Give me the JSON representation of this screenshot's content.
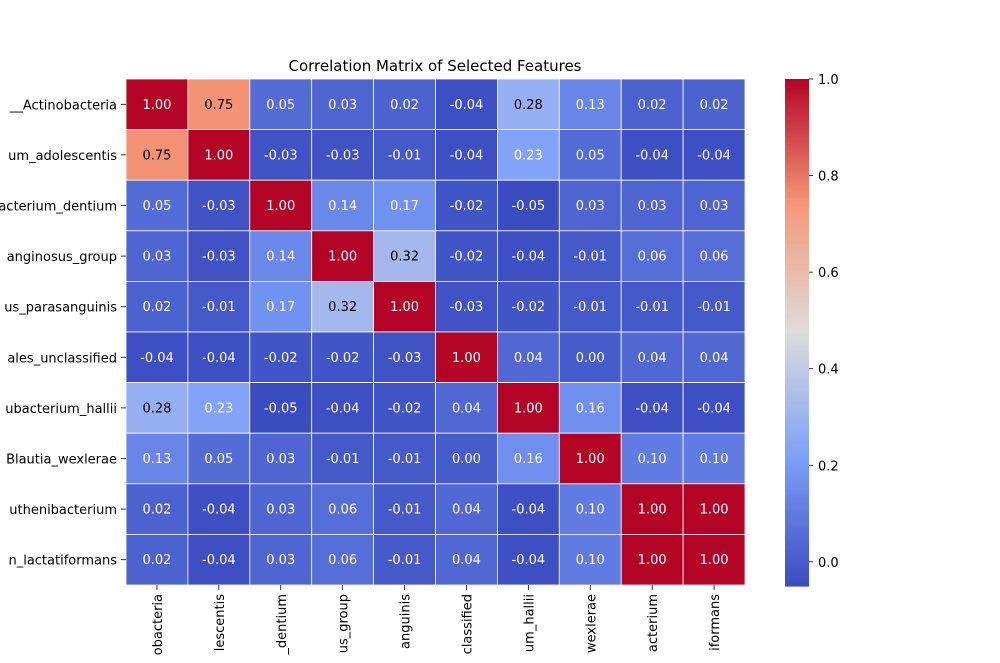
{
  "chart_data": {
    "type": "heatmap",
    "title": "Correlation Matrix of Selected Features",
    "row_labels": [
      "__Actinobacteria",
      "um_adolescentis",
      "acterium_dentium",
      "anginosus_group",
      "us_parasanguinis",
      "ales_unclassified",
      "ubacterium_hallii",
      "Blautia_wexlerae",
      "uthenibacterium",
      "n_lactatiformans"
    ],
    "col_labels": [
      "obacteria",
      "lescentis",
      "_dentium",
      "us_group",
      "anguinis",
      "classified",
      "um_hallii",
      "wexlerae",
      "acterium",
      "iformans"
    ],
    "values": [
      [
        1.0,
        0.75,
        0.05,
        0.03,
        0.02,
        -0.04,
        0.28,
        0.13,
        0.02,
        0.02
      ],
      [
        0.75,
        1.0,
        -0.03,
        -0.03,
        -0.01,
        -0.04,
        0.23,
        0.05,
        -0.04,
        -0.04
      ],
      [
        0.05,
        -0.03,
        1.0,
        0.14,
        0.17,
        -0.02,
        -0.05,
        0.03,
        0.03,
        0.03
      ],
      [
        0.03,
        -0.03,
        0.14,
        1.0,
        0.32,
        -0.02,
        -0.04,
        -0.01,
        0.06,
        0.06
      ],
      [
        0.02,
        -0.01,
        0.17,
        0.32,
        1.0,
        -0.03,
        -0.02,
        -0.01,
        -0.01,
        -0.01
      ],
      [
        -0.04,
        -0.04,
        -0.02,
        -0.02,
        -0.03,
        1.0,
        0.04,
        0.0,
        0.04,
        0.04
      ],
      [
        0.28,
        0.23,
        -0.05,
        -0.04,
        -0.02,
        0.04,
        1.0,
        0.16,
        -0.04,
        -0.04
      ],
      [
        0.13,
        0.05,
        0.03,
        -0.01,
        -0.01,
        0.0,
        0.16,
        1.0,
        0.1,
        0.1
      ],
      [
        0.02,
        -0.04,
        0.03,
        0.06,
        -0.01,
        0.04,
        -0.04,
        0.1,
        1.0,
        1.0
      ],
      [
        0.02,
        -0.04,
        0.03,
        0.06,
        -0.01,
        0.04,
        -0.04,
        0.1,
        1.0,
        1.0
      ]
    ],
    "value_format": "2 decimals",
    "colorscale": "coolwarm",
    "vmin": -0.05,
    "vmax": 1.0,
    "colorbar_ticks": [
      "0.0",
      "0.2",
      "0.4",
      "0.6",
      "0.8",
      "1.0"
    ],
    "grid": false,
    "cell_border_color": "#ffffff"
  }
}
